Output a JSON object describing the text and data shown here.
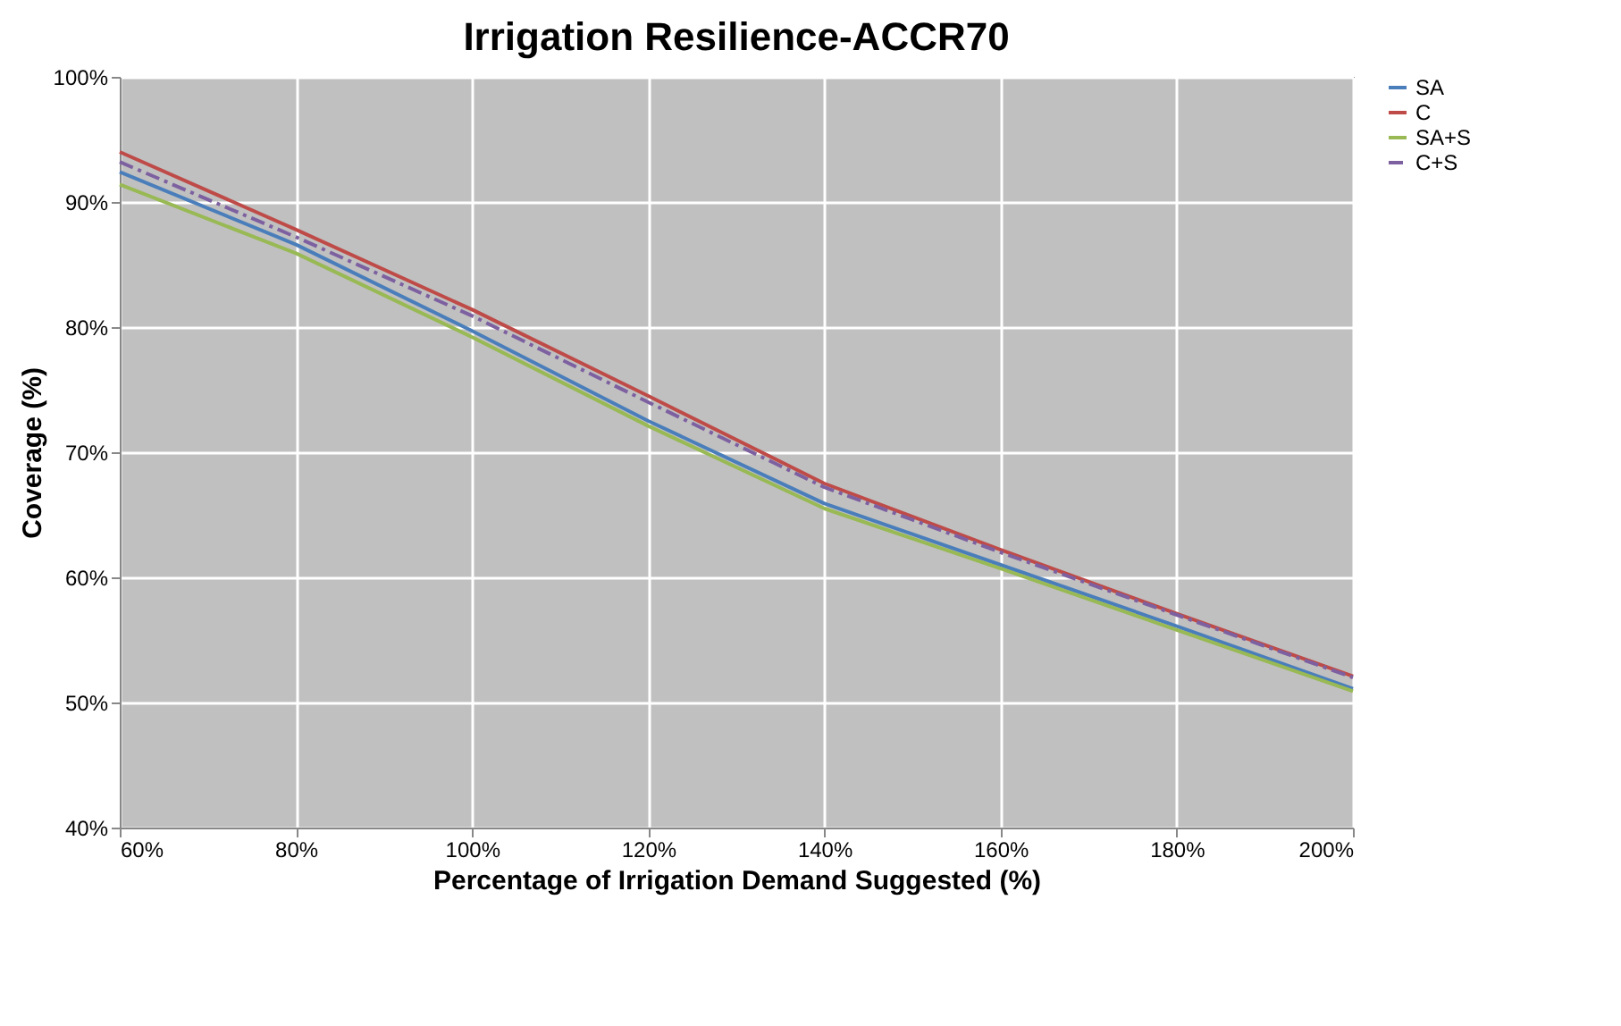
{
  "chart_data": {
    "type": "line",
    "title": "Irrigation Resilience-ACCR70",
    "xlabel": "Percentage of Irrigation Demand Suggested (%)",
    "ylabel": "Coverage (%)",
    "x": [
      60,
      80,
      100,
      120,
      140,
      160,
      180,
      200
    ],
    "series": [
      {
        "name": "SA",
        "color": "#4a7ebb",
        "values": [
          92.4,
          86.6,
          79.7,
          72.5,
          65.9,
          61.0,
          56.1,
          51.1
        ]
      },
      {
        "name": "C",
        "color": "#be4b48",
        "values": [
          94.0,
          87.8,
          81.4,
          74.5,
          67.5,
          62.2,
          57.1,
          52.1
        ]
      },
      {
        "name": "SA+S",
        "color": "#98b954",
        "values": [
          91.4,
          85.9,
          79.2,
          72.1,
          65.5,
          60.7,
          55.8,
          50.9
        ]
      },
      {
        "name": "C+S",
        "color": "#7d60a0",
        "line_style": "dashed",
        "values": [
          93.2,
          87.2,
          80.9,
          74.0,
          67.2,
          62.0,
          57.0,
          52.0
        ]
      }
    ],
    "xlim": [
      60,
      200
    ],
    "ylim": [
      40,
      100
    ],
    "xticks": [
      {
        "value": 60,
        "label": "60%"
      },
      {
        "value": 80,
        "label": "80%"
      },
      {
        "value": 100,
        "label": "100%"
      },
      {
        "value": 120,
        "label": "120%"
      },
      {
        "value": 140,
        "label": "140%"
      },
      {
        "value": 160,
        "label": "160%"
      },
      {
        "value": 180,
        "label": "180%"
      },
      {
        "value": 200,
        "label": "200%"
      }
    ],
    "yticks": [
      {
        "value": 40,
        "label": "40%"
      },
      {
        "value": 50,
        "label": "50%"
      },
      {
        "value": 60,
        "label": "60%"
      },
      {
        "value": 70,
        "label": "70%"
      },
      {
        "value": 80,
        "label": "80%"
      },
      {
        "value": 90,
        "label": "90%"
      },
      {
        "value": 100,
        "label": "100%"
      }
    ],
    "grid": true,
    "legend": "right",
    "marker": "none",
    "line_style": "solid"
  }
}
